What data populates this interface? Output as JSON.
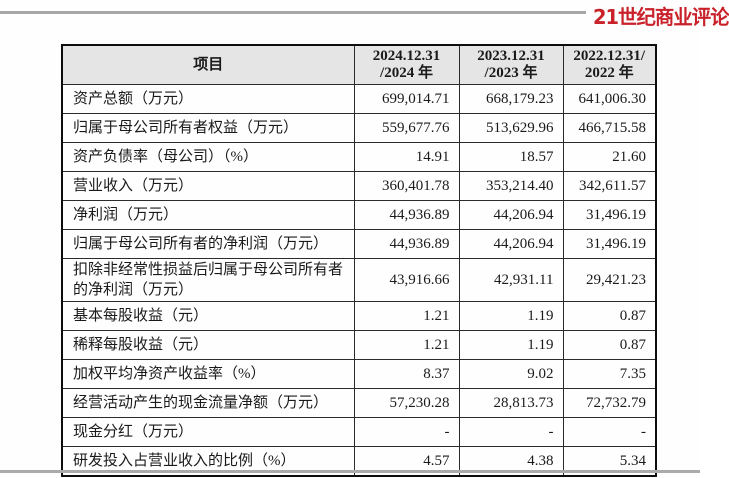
{
  "branding": {
    "logo_text": "21世纪商业评论",
    "logo_color": "#c9222a"
  },
  "colors": {
    "header_background": "#e5e5e5",
    "table_border": "#0d0d0d",
    "divider_gray": "#a7a7a7"
  },
  "table": {
    "columns": [
      {
        "key": "label",
        "label_lines": [
          "项目"
        ]
      },
      {
        "key": "y2024",
        "label_lines": [
          "2024.12.31",
          "/2024 年"
        ]
      },
      {
        "key": "y2023",
        "label_lines": [
          "2023.12.31",
          "/2023 年"
        ]
      },
      {
        "key": "y2022",
        "label_lines": [
          "2022.12.31/",
          "2022 年"
        ]
      }
    ],
    "rows": [
      {
        "label": "资产总额（万元）",
        "values": [
          "699,014.71",
          "668,179.23",
          "641,006.30"
        ]
      },
      {
        "label": "归属于母公司所有者权益（万元）",
        "values": [
          "559,677.76",
          "513,629.96",
          "466,715.58"
        ]
      },
      {
        "label": "资产负债率（母公司）（%）",
        "values": [
          "14.91",
          "18.57",
          "21.60"
        ]
      },
      {
        "label": "营业收入（万元）",
        "values": [
          "360,401.78",
          "353,214.40",
          "342,611.57"
        ]
      },
      {
        "label": "净利润（万元）",
        "values": [
          "44,936.89",
          "44,206.94",
          "31,496.19"
        ]
      },
      {
        "label": "归属于母公司所有者的净利润（万元）",
        "values": [
          "44,936.89",
          "44,206.94",
          "31,496.19"
        ]
      },
      {
        "label": "扣除非经常性损益后归属于母公司所有者的净利润（万元）",
        "values": [
          "43,916.66",
          "42,931.11",
          "29,421.23"
        ]
      },
      {
        "label": "基本每股收益（元）",
        "values": [
          "1.21",
          "1.19",
          "0.87"
        ]
      },
      {
        "label": "稀释每股收益（元）",
        "values": [
          "1.21",
          "1.19",
          "0.87"
        ]
      },
      {
        "label": "加权平均净资产收益率（%）",
        "values": [
          "8.37",
          "9.02",
          "7.35"
        ]
      },
      {
        "label": "经营活动产生的现金流量净额（万元）",
        "values": [
          "57,230.28",
          "28,813.73",
          "72,732.79"
        ]
      },
      {
        "label": "现金分红（万元）",
        "values": [
          "-",
          "-",
          "-"
        ]
      },
      {
        "label": "研发投入占营业收入的比例（%）",
        "values": [
          "4.57",
          "4.38",
          "5.34"
        ]
      }
    ]
  }
}
